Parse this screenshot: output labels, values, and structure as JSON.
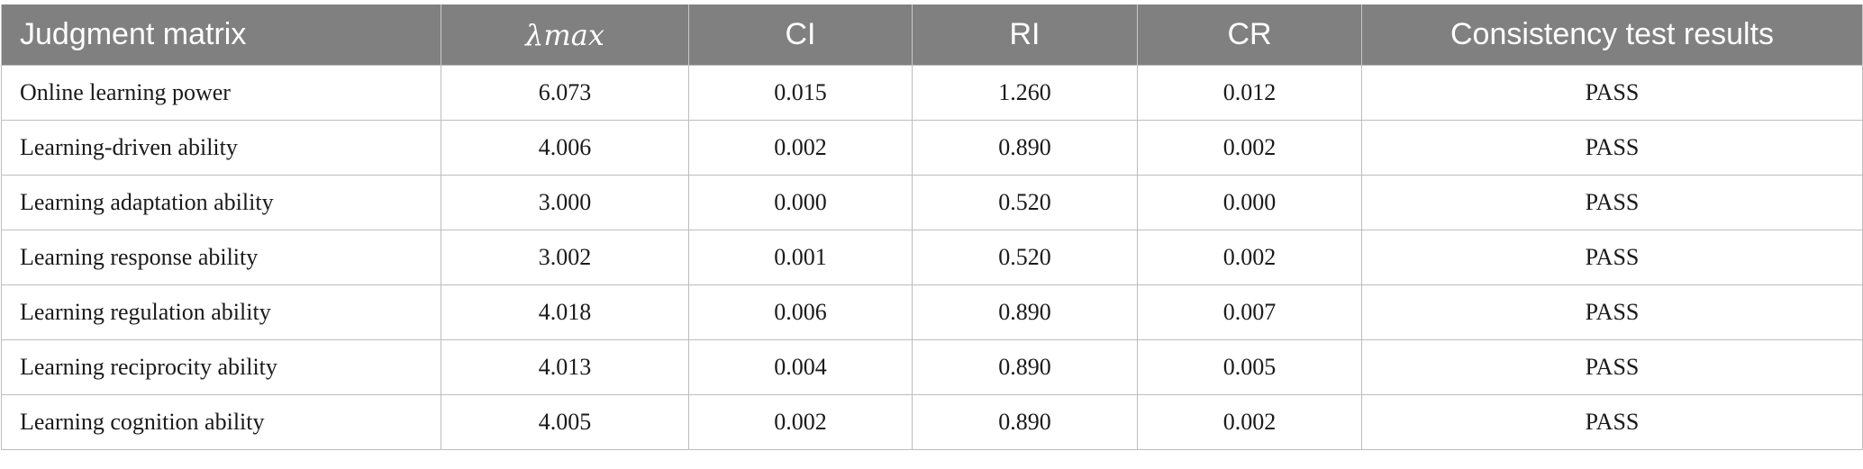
{
  "table": {
    "headers": [
      "Judgment matrix",
      "λmax",
      "CI",
      "RI",
      "CR",
      "Consistency test results"
    ],
    "rows": [
      [
        "Online learning power",
        "6.073",
        "0.015",
        "1.260",
        "0.012",
        "PASS"
      ],
      [
        "Learning-driven ability",
        "4.006",
        "0.002",
        "0.890",
        "0.002",
        "PASS"
      ],
      [
        "Learning adaptation ability",
        "3.000",
        "0.000",
        "0.520",
        "0.000",
        "PASS"
      ],
      [
        "Learning response ability",
        "3.002",
        "0.001",
        "0.520",
        "0.002",
        "PASS"
      ],
      [
        "Learning regulation ability",
        "4.018",
        "0.006",
        "0.890",
        "0.007",
        "PASS"
      ],
      [
        "Learning reciprocity ability",
        "4.013",
        "0.004",
        "0.890",
        "0.005",
        "PASS"
      ],
      [
        "Learning cognition ability",
        "4.005",
        "0.002",
        "0.890",
        "0.002",
        "PASS"
      ]
    ]
  },
  "colors": {
    "header_background": "#808080",
    "header_text": "#ffffff",
    "grid_line": "#bdbdbd"
  }
}
